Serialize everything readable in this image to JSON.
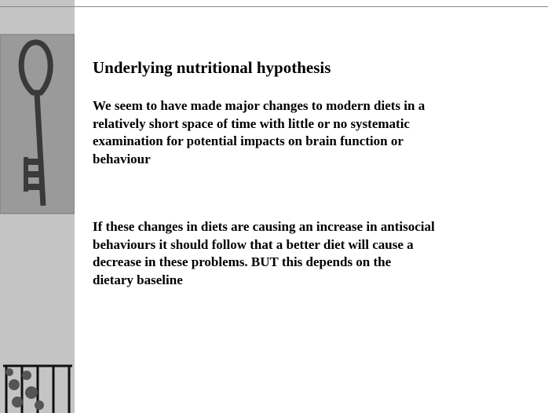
{
  "slide": {
    "title": "Underlying nutritional hypothesis",
    "paragraphs": [
      {
        "lines": [
          "We seem to have made major changes to modern diets in a",
          "relatively short space of time with little or no systematic",
          "examination for potential impacts on brain function or",
          "behaviour"
        ]
      },
      {
        "lines": [
          "If these changes in diets are causing an increase in antisocial",
          "behaviours it should follow that a better diet will cause a",
          "decrease in these problems.  BUT this depends on the",
          "dietary baseline"
        ]
      }
    ]
  }
}
